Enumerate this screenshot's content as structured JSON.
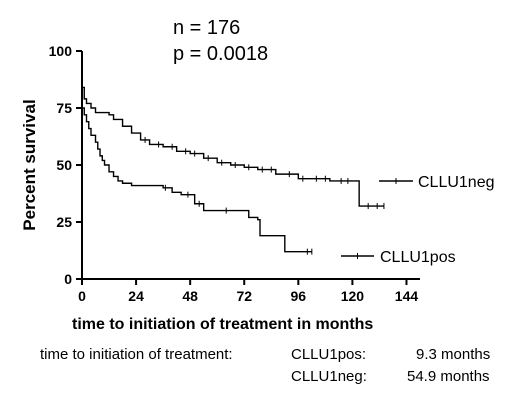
{
  "stats": {
    "n_text": "n = 176",
    "p_text": "p = 0.0018"
  },
  "chart_data": {
    "type": "line",
    "subtype": "kaplan-meier",
    "xlabel": "time to initiation of treatment in months",
    "ylabel": "Percent survival",
    "xlim": [
      0,
      150
    ],
    "ylim": [
      0,
      100
    ],
    "xticks": [
      0,
      24,
      48,
      72,
      96,
      120,
      144
    ],
    "yticks": [
      0,
      25,
      50,
      75,
      100
    ],
    "grid": false,
    "series": [
      {
        "name": "CLLU1neg",
        "steps": [
          [
            0,
            84
          ],
          [
            1,
            79
          ],
          [
            2,
            77
          ],
          [
            4,
            75
          ],
          [
            6,
            73
          ],
          [
            12,
            72
          ],
          [
            14,
            70
          ],
          [
            18,
            67
          ],
          [
            22,
            64
          ],
          [
            26,
            61
          ],
          [
            30,
            59
          ],
          [
            36,
            58
          ],
          [
            42,
            56
          ],
          [
            48,
            55
          ],
          [
            54,
            53
          ],
          [
            60,
            51
          ],
          [
            66,
            50
          ],
          [
            72,
            49
          ],
          [
            78,
            48
          ],
          [
            86,
            46
          ],
          [
            90,
            46
          ],
          [
            96,
            44
          ],
          [
            110,
            43
          ],
          [
            122,
            43
          ],
          [
            123,
            32
          ],
          [
            134,
            32
          ]
        ],
        "censors": [
          28,
          34,
          40,
          46,
          50,
          56,
          62,
          68,
          74,
          80,
          84,
          92,
          98,
          104,
          108,
          115,
          118,
          127,
          131,
          134
        ]
      },
      {
        "name": "CLLU1pos",
        "steps": [
          [
            0,
            75
          ],
          [
            1,
            72
          ],
          [
            2,
            69
          ],
          [
            3,
            66
          ],
          [
            4,
            63
          ],
          [
            6,
            60
          ],
          [
            7,
            57
          ],
          [
            8,
            54
          ],
          [
            9,
            52
          ],
          [
            10,
            50
          ],
          [
            12,
            47
          ],
          [
            14,
            45
          ],
          [
            16,
            43
          ],
          [
            18,
            42
          ],
          [
            22,
            41
          ],
          [
            34,
            41
          ],
          [
            36,
            40
          ],
          [
            40,
            38
          ],
          [
            44,
            37
          ],
          [
            50,
            33
          ],
          [
            54,
            30
          ],
          [
            72,
            30
          ],
          [
            74,
            27
          ],
          [
            78,
            26
          ],
          [
            79,
            19
          ],
          [
            89,
            19
          ],
          [
            90,
            12
          ],
          [
            102,
            12
          ]
        ],
        "censors": [
          37,
          47,
          52,
          64,
          100,
          102
        ]
      }
    ],
    "legend_placement": "inline-right"
  },
  "footnote": {
    "label": "time to initiation of treatment:",
    "pos_name": "CLLU1pos:",
    "pos_value": "9.3 months",
    "neg_name": "CLLU1neg:",
    "neg_value": "54.9 months"
  }
}
